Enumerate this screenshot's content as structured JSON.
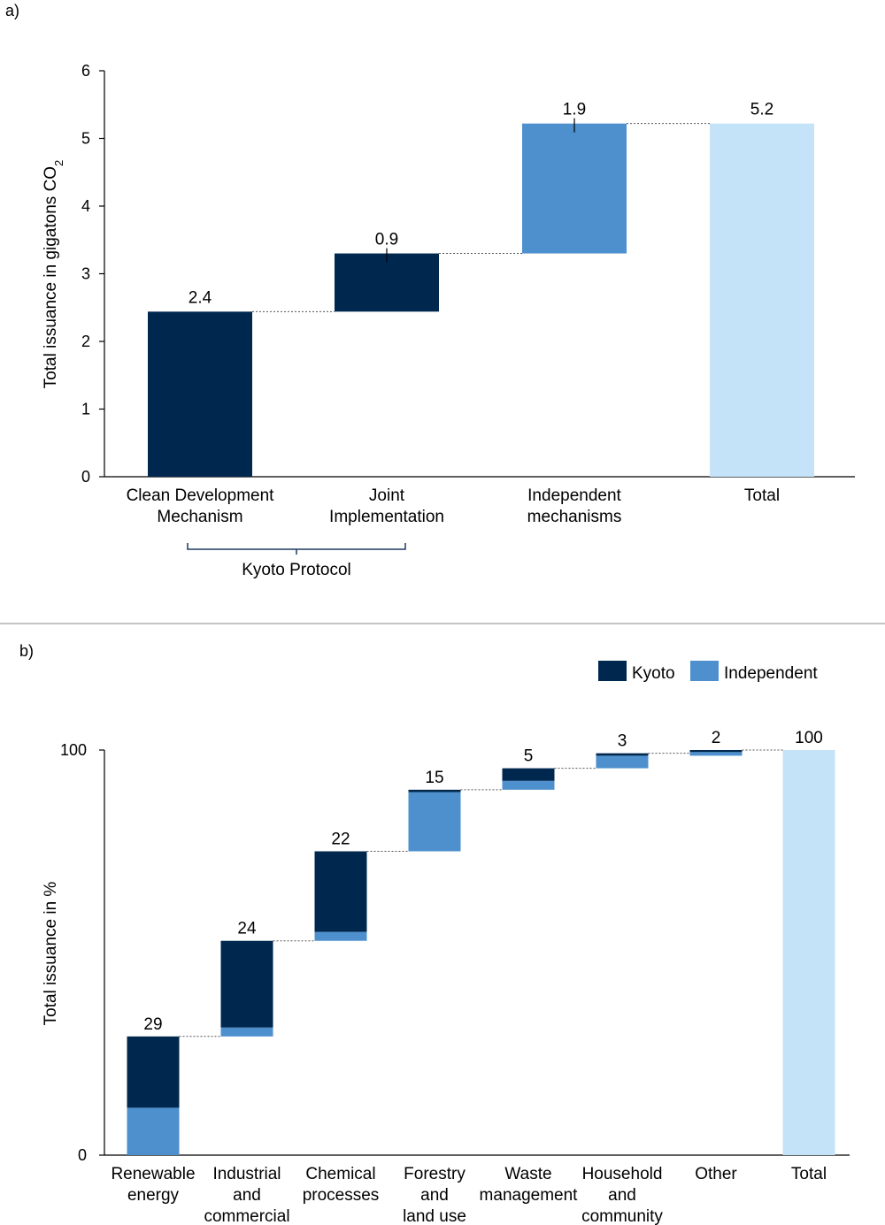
{
  "panels": {
    "a": {
      "label": "a)"
    },
    "b": {
      "label": "b)"
    }
  },
  "colors": {
    "kyoto": "#00284f",
    "independent": "#4d90cd",
    "total": "#c4e3f8",
    "connector": "#555555",
    "axis": "#000000",
    "divider": "#b0b0b0"
  },
  "chart_data": [
    {
      "id": "a",
      "type": "bar",
      "subtype": "waterfall",
      "title": "",
      "xlabel": "",
      "ylabel_main": "Total issuance in gigatons CO",
      "ylabel_sub": "2",
      "ylim": [
        0,
        6
      ],
      "yticks": [
        0,
        1,
        2,
        3,
        4,
        5,
        6
      ],
      "categories": [
        {
          "lines": [
            "Clean Development",
            "Mechanism"
          ],
          "value": 2.4,
          "base": 0,
          "top": 2.44,
          "kind": "kyoto",
          "label": "2.4"
        },
        {
          "lines": [
            "Joint",
            "Implementation"
          ],
          "value": 0.9,
          "base": 2.44,
          "top": 3.3,
          "kind": "kyoto",
          "label": "0.9"
        },
        {
          "lines": [
            "Independent",
            "mechanisms"
          ],
          "value": 1.9,
          "base": 3.3,
          "top": 5.22,
          "kind": "independent",
          "label": "1.9"
        },
        {
          "lines": [
            "Total"
          ],
          "value": 5.2,
          "base": 0,
          "top": 5.22,
          "kind": "total",
          "label": "5.2"
        }
      ],
      "group_bracket": {
        "label": "Kyoto Protocol",
        "spans": [
          0,
          1
        ]
      }
    },
    {
      "id": "b",
      "type": "bar",
      "subtype": "stacked-waterfall",
      "title": "",
      "xlabel": "",
      "ylabel": "Total issuance in %",
      "ylim": [
        0,
        100
      ],
      "yticks": [
        0,
        100
      ],
      "legend": {
        "position": "top-right",
        "entries": [
          {
            "name": "Kyoto",
            "kind": "kyoto"
          },
          {
            "name": "Independent",
            "kind": "independent"
          }
        ]
      },
      "categories": [
        {
          "lines": [
            "Renewable",
            "energy"
          ],
          "label": "29",
          "base": 0,
          "independent": 11.7,
          "kyoto": 17.6
        },
        {
          "lines": [
            "Industrial",
            "and",
            "commercial"
          ],
          "label": "24",
          "base": 29.3,
          "independent": 2.2,
          "kyoto": 21.4
        },
        {
          "lines": [
            "Chemical",
            "processes"
          ],
          "label": "22",
          "base": 52.9,
          "independent": 2.2,
          "kyoto": 19.9
        },
        {
          "lines": [
            "Forestry",
            "and",
            "land use"
          ],
          "label": "15",
          "base": 75.0,
          "independent": 14.6,
          "kyoto": 0.6
        },
        {
          "lines": [
            "Waste",
            "management"
          ],
          "label": "5",
          "base": 90.2,
          "independent": 2.2,
          "kyoto": 3.1
        },
        {
          "lines": [
            "Household",
            "and",
            "community"
          ],
          "label": "3",
          "base": 95.5,
          "independent": 3.1,
          "kyoto": 0.6
        },
        {
          "lines": [
            "Other"
          ],
          "label": "2",
          "base": 98.6,
          "independent": 0.9,
          "kyoto": 0.5
        },
        {
          "lines": [
            "Total"
          ],
          "label": "100",
          "base": 0,
          "total": 100
        }
      ]
    }
  ]
}
